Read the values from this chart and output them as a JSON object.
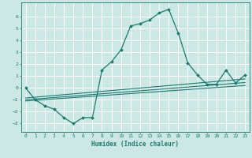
{
  "xlabel": "Humidex (Indice chaleur)",
  "background_color": "#cce8e4",
  "grid_color": "#ffffff",
  "line_color": "#1a7a6e",
  "xlim": [
    -0.5,
    23.5
  ],
  "ylim": [
    -3.7,
    7.2
  ],
  "xticks": [
    0,
    1,
    2,
    3,
    4,
    5,
    6,
    7,
    8,
    9,
    10,
    11,
    12,
    13,
    14,
    15,
    16,
    17,
    18,
    19,
    20,
    21,
    22,
    23
  ],
  "yticks": [
    -3,
    -2,
    -1,
    0,
    1,
    2,
    3,
    4,
    5,
    6
  ],
  "main_x": [
    0,
    1,
    2,
    3,
    4,
    5,
    6,
    7,
    8,
    9,
    10,
    11,
    12,
    13,
    14,
    15,
    16,
    17,
    18,
    19,
    20,
    21,
    22,
    23
  ],
  "main_y": [
    0,
    -1,
    -1.5,
    -1.8,
    -2.5,
    -3,
    -2.5,
    -2.5,
    1.5,
    2.2,
    3.2,
    5.2,
    5.4,
    5.7,
    6.3,
    6.6,
    4.6,
    2.1,
    1.1,
    0.3,
    0.3,
    1.5,
    0.4,
    1.1
  ],
  "line1_x": [
    0,
    23
  ],
  "line1_y": [
    -1.1,
    0.2
  ],
  "line2_x": [
    0,
    23
  ],
  "line2_y": [
    -1.0,
    0.45
  ],
  "line3_x": [
    0,
    23
  ],
  "line3_y": [
    -0.85,
    0.75
  ]
}
